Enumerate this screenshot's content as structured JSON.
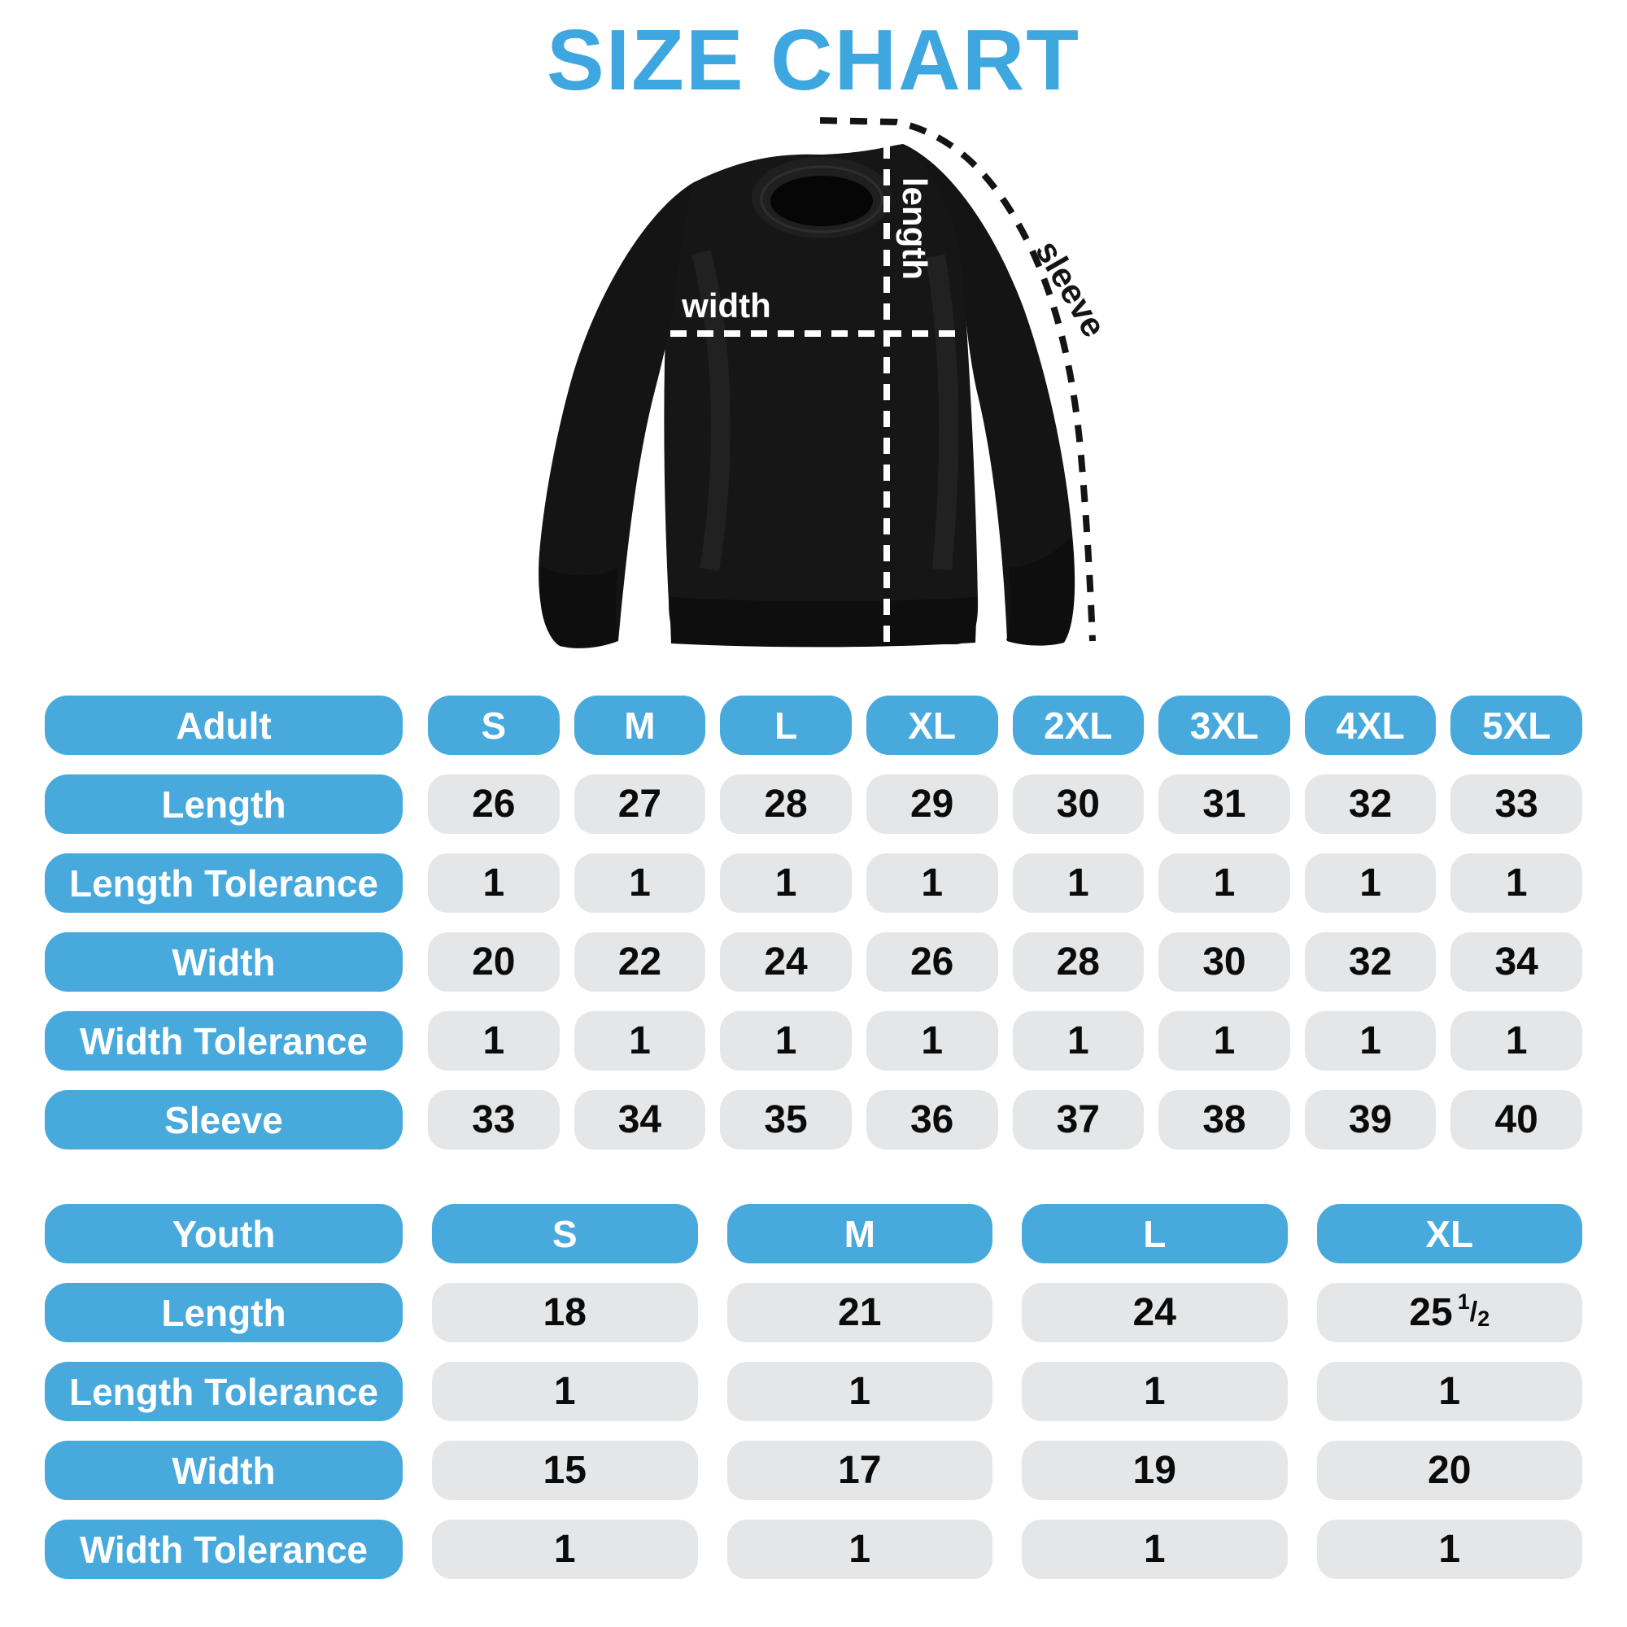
{
  "title": "SIZE CHART",
  "colors": {
    "title_blue": "#3EA7E0",
    "pill_blue": "#47A9DC",
    "cell_gray": "#E5E6E7",
    "cell_text": "#0B0B0B",
    "shirt_dark": "#161616",
    "shirt_darker": "#0E0E0E",
    "dash_white": "#FFFFFF",
    "dash_black": "#141414"
  },
  "diagram": {
    "width_label": "width",
    "length_label": "length",
    "sleeve_label": "sleeve"
  },
  "chart_data": [
    {
      "type": "table",
      "group_label": "Adult",
      "sizes": [
        "S",
        "M",
        "L",
        "XL",
        "2XL",
        "3XL",
        "4XL",
        "5XL"
      ],
      "rows": [
        {
          "label": "Length",
          "values": [
            "26",
            "27",
            "28",
            "29",
            "30",
            "31",
            "32",
            "33"
          ]
        },
        {
          "label": "Length Tolerance",
          "values": [
            "1",
            "1",
            "1",
            "1",
            "1",
            "1",
            "1",
            "1"
          ]
        },
        {
          "label": "Width",
          "values": [
            "20",
            "22",
            "24",
            "26",
            "28",
            "30",
            "32",
            "34"
          ]
        },
        {
          "label": "Width Tolerance",
          "values": [
            "1",
            "1",
            "1",
            "1",
            "1",
            "1",
            "1",
            "1"
          ]
        },
        {
          "label": "Sleeve",
          "values": [
            "33",
            "34",
            "35",
            "36",
            "37",
            "38",
            "39",
            "40"
          ]
        }
      ]
    },
    {
      "type": "table",
      "group_label": "Youth",
      "sizes": [
        "S",
        "M",
        "L",
        "XL"
      ],
      "rows": [
        {
          "label": "Length",
          "values": [
            "18",
            "21",
            "24",
            "25 1/2"
          ]
        },
        {
          "label": "Length Tolerance",
          "values": [
            "1",
            "1",
            "1",
            "1"
          ]
        },
        {
          "label": "Width",
          "values": [
            "15",
            "17",
            "19",
            "20"
          ]
        },
        {
          "label": "Width Tolerance",
          "values": [
            "1",
            "1",
            "1",
            "1"
          ]
        }
      ]
    }
  ]
}
